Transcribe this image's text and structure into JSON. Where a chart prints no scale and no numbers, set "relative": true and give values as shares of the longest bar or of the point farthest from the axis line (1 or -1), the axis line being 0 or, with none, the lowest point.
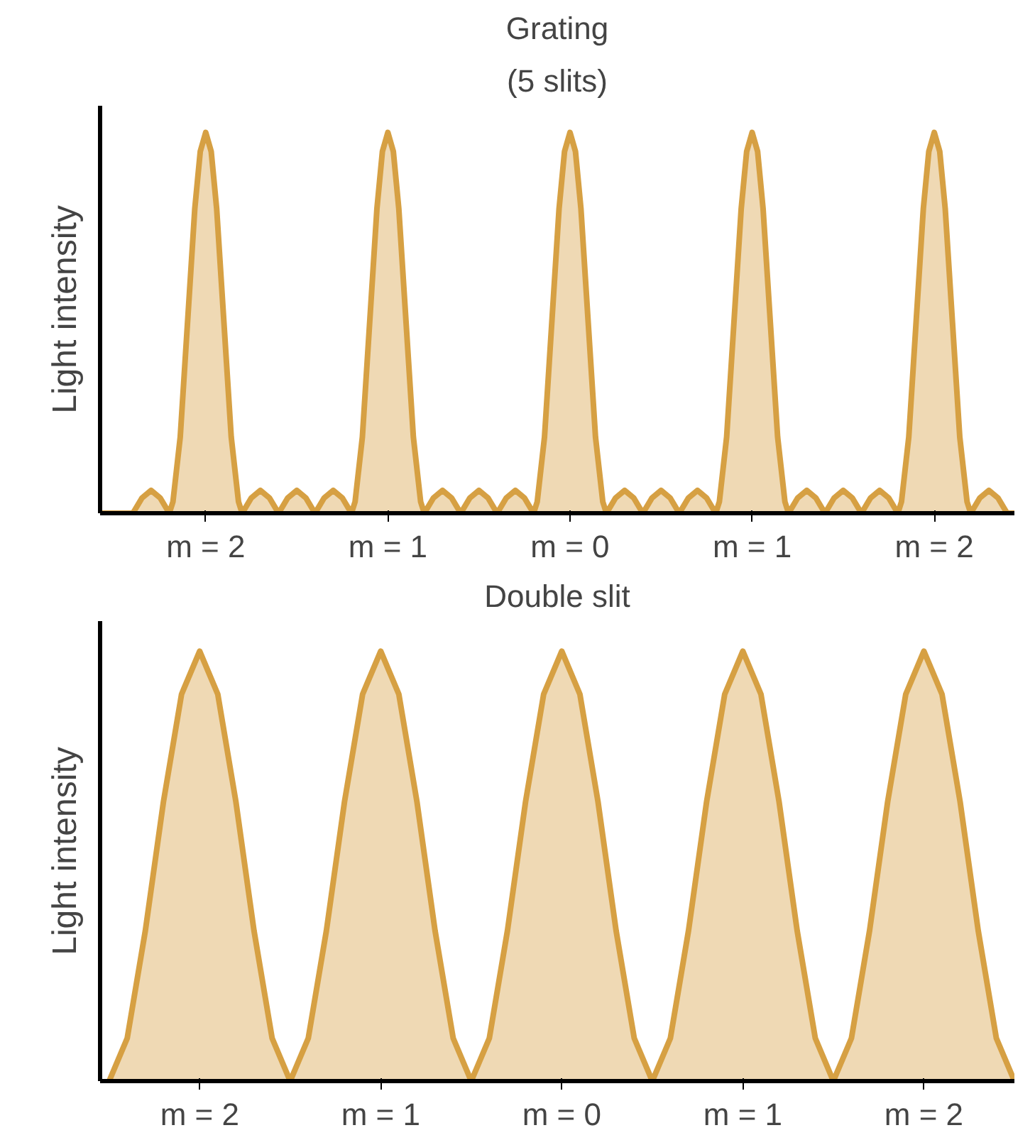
{
  "chart_data": [
    {
      "type": "area",
      "title": "Grating",
      "subtitle": "(5 slits)",
      "ylabel": "Light intensity",
      "relative": true,
      "xlim": [
        -2.58,
        2.44
      ],
      "xticks": [
        {
          "value": -2,
          "label": "m = 2"
        },
        {
          "value": -1,
          "label": "m = 1"
        },
        {
          "value": 0,
          "label": "m = 0"
        },
        {
          "value": 1,
          "label": "m = 1"
        },
        {
          "value": 2,
          "label": "m = 2"
        }
      ],
      "x": [
        -2.58,
        -2.4,
        -2.35,
        -2.3,
        -2.25,
        -2.2,
        -2.18,
        -2.14,
        -2.1,
        -2.06,
        -2.03,
        -2,
        -1.97,
        -1.94,
        -1.9,
        -1.86,
        -1.82,
        -1.8,
        -1.75,
        -1.7,
        -1.65,
        -1.6,
        -1.55,
        -1.5,
        -1.45,
        -1.4,
        -1.35,
        -1.3,
        -1.25,
        -1.2,
        -1.18,
        -1.14,
        -1.1,
        -1.06,
        -1.03,
        -1,
        -0.97,
        -0.94,
        -0.9,
        -0.86,
        -0.82,
        -0.8,
        -0.75,
        -0.7,
        -0.65,
        -0.6,
        -0.55,
        -0.5,
        -0.45,
        -0.4,
        -0.35,
        -0.3,
        -0.25,
        -0.2,
        -0.18,
        -0.14,
        -0.1,
        -0.06,
        -0.03,
        0,
        0.03,
        0.06,
        0.1,
        0.14,
        0.18,
        0.2,
        0.25,
        0.3,
        0.35,
        0.4,
        0.45,
        0.5,
        0.55,
        0.6,
        0.65,
        0.7,
        0.75,
        0.8,
        0.82,
        0.86,
        0.9,
        0.94,
        0.97,
        1,
        1.03,
        1.06,
        1.1,
        1.14,
        1.18,
        1.2,
        1.25,
        1.3,
        1.35,
        1.4,
        1.45,
        1.5,
        1.55,
        1.6,
        1.65,
        1.7,
        1.75,
        1.8,
        1.82,
        1.86,
        1.9,
        1.94,
        1.97,
        2,
        2.03,
        2.06,
        2.1,
        2.14,
        2.18,
        2.2,
        2.25,
        2.3,
        2.35,
        2.4,
        2.44
      ],
      "series": [
        {
          "color": "#d6a043",
          "values": [
            0,
            0,
            0.04,
            0.06,
            0.04,
            0,
            0.03,
            0.2,
            0.5,
            0.8,
            0.95,
            1,
            0.95,
            0.8,
            0.5,
            0.2,
            0.03,
            0,
            0.04,
            0.06,
            0.04,
            0,
            0.04,
            0.06,
            0.04,
            0,
            0.04,
            0.06,
            0.04,
            0,
            0.03,
            0.2,
            0.5,
            0.8,
            0.95,
            1,
            0.95,
            0.8,
            0.5,
            0.2,
            0.03,
            0,
            0.04,
            0.06,
            0.04,
            0,
            0.04,
            0.06,
            0.04,
            0,
            0.04,
            0.06,
            0.04,
            0,
            0.03,
            0.2,
            0.5,
            0.8,
            0.95,
            1,
            0.95,
            0.8,
            0.5,
            0.2,
            0.03,
            0,
            0.04,
            0.06,
            0.04,
            0,
            0.04,
            0.06,
            0.04,
            0,
            0.04,
            0.06,
            0.04,
            0,
            0.03,
            0.2,
            0.5,
            0.8,
            0.95,
            1,
            0.95,
            0.8,
            0.5,
            0.2,
            0.03,
            0,
            0.04,
            0.06,
            0.04,
            0,
            0.04,
            0.06,
            0.04,
            0,
            0.04,
            0.06,
            0.04,
            0,
            0.03,
            0.2,
            0.5,
            0.8,
            0.95,
            1,
            0.95,
            0.8,
            0.5,
            0.2,
            0.03,
            0,
            0.04,
            0.06,
            0.04,
            0,
            0
          ]
        }
      ]
    },
    {
      "type": "area",
      "title": "Double slit",
      "ylabel": "Light intensity",
      "relative": true,
      "xlim": [
        -2.55,
        2.5
      ],
      "xticks": [
        {
          "value": -2,
          "label": "m = 2"
        },
        {
          "value": -1,
          "label": "m = 1"
        },
        {
          "value": 0,
          "label": "m = 0"
        },
        {
          "value": 1,
          "label": "m = 1"
        },
        {
          "value": 2,
          "label": "m = 2"
        }
      ],
      "x": [
        -2.5,
        -2.4,
        -2.3,
        -2.2,
        -2.1,
        -2,
        -1.9,
        -1.8,
        -1.7,
        -1.6,
        -1.5,
        -1.4,
        -1.3,
        -1.2,
        -1.1,
        -1,
        -0.9,
        -0.8,
        -0.7,
        -0.6,
        -0.5,
        -0.4,
        -0.3,
        -0.2,
        -0.1,
        0,
        0.1,
        0.2,
        0.3,
        0.4,
        0.5,
        0.6,
        0.7,
        0.8,
        0.9,
        1,
        1.1,
        1.2,
        1.3,
        1.4,
        1.5,
        1.6,
        1.7,
        1.8,
        1.9,
        2,
        2.1,
        2.2,
        2.3,
        2.4,
        2.5
      ],
      "series": [
        {
          "color": "#d6a043",
          "values": [
            0,
            0.1,
            0.35,
            0.65,
            0.9,
            1,
            0.9,
            0.65,
            0.35,
            0.1,
            0,
            0.1,
            0.35,
            0.65,
            0.9,
            1,
            0.9,
            0.65,
            0.35,
            0.1,
            0,
            0.1,
            0.35,
            0.65,
            0.9,
            1,
            0.9,
            0.65,
            0.35,
            0.1,
            0,
            0.1,
            0.35,
            0.65,
            0.9,
            1,
            0.9,
            0.65,
            0.35,
            0.1,
            0,
            0.1,
            0.35,
            0.65,
            0.9,
            1,
            0.9,
            0.65,
            0.35,
            0.1,
            0
          ]
        }
      ]
    }
  ]
}
